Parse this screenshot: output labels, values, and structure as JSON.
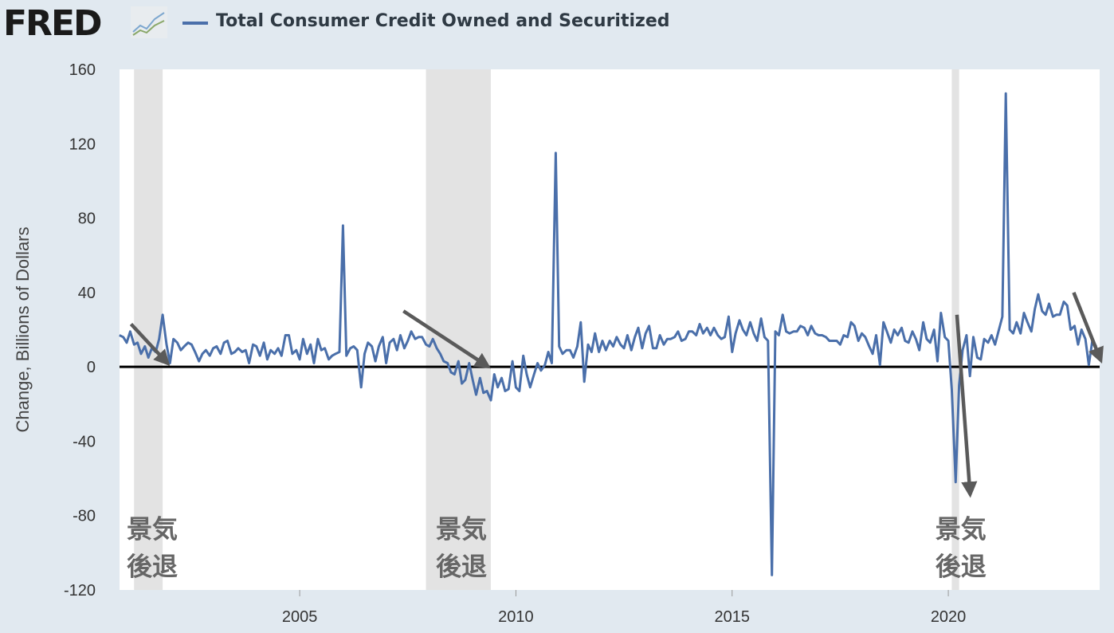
{
  "header": {
    "logo_text": "FRED",
    "logo_mark": "chart-line-icon",
    "legend_label": "Total Consumer Credit Owned and Securitized",
    "legend_color": "#4a6faa"
  },
  "chart_data": {
    "type": "line",
    "ylabel": "Change, Billions of Dollars",
    "ylim": [
      -120,
      160
    ],
    "yticks": [
      160,
      120,
      80,
      40,
      0,
      -40,
      -80,
      -120
    ],
    "xlim": [
      2000.8333,
      2023.5
    ],
    "xticks": [
      2005,
      2010,
      2015,
      2020
    ],
    "grid": false,
    "legend_position": "top-left",
    "colors": {
      "series": "#4a6faa",
      "recession": "#e3e3e3",
      "zero_line": "#000000",
      "annotation": "#666666"
    },
    "recessions": [
      [
        2001.17,
        2001.83
      ],
      [
        2007.92,
        2009.42
      ],
      [
        2020.08,
        2020.25
      ]
    ],
    "annotations": [
      {
        "line1": "景気",
        "line2": "後退",
        "year": 2001.0
      },
      {
        "line1": "景気",
        "line2": "後退",
        "year": 2008.15
      },
      {
        "line1": "景気",
        "line2": "後退",
        "year": 2019.7
      }
    ],
    "arrows": [
      {
        "from": [
          2001.1,
          23
        ],
        "to": [
          2001.9,
          3
        ]
      },
      {
        "from": [
          2007.4,
          30
        ],
        "to": [
          2009.3,
          1
        ]
      },
      {
        "from": [
          2020.2,
          28
        ],
        "to": [
          2020.5,
          -67
        ]
      },
      {
        "from": [
          2022.9,
          40
        ],
        "to": [
          2023.5,
          5
        ]
      }
    ],
    "series": [
      {
        "name": "Total Consumer Credit Owned and Securitized",
        "values": [
          [
            2000.83,
            17
          ],
          [
            2000.92,
            16
          ],
          [
            2001.0,
            13
          ],
          [
            2001.08,
            19
          ],
          [
            2001.17,
            12
          ],
          [
            2001.25,
            13
          ],
          [
            2001.33,
            7
          ],
          [
            2001.42,
            11
          ],
          [
            2001.5,
            5
          ],
          [
            2001.58,
            10
          ],
          [
            2001.67,
            8
          ],
          [
            2001.75,
            15
          ],
          [
            2001.83,
            28
          ],
          [
            2001.92,
            12
          ],
          [
            2002.0,
            2
          ],
          [
            2002.08,
            15
          ],
          [
            2002.17,
            13
          ],
          [
            2002.25,
            9
          ],
          [
            2002.33,
            11
          ],
          [
            2002.42,
            13
          ],
          [
            2002.5,
            12
          ],
          [
            2002.58,
            8
          ],
          [
            2002.67,
            3
          ],
          [
            2002.75,
            7
          ],
          [
            2002.83,
            9
          ],
          [
            2002.92,
            6
          ],
          [
            2003.0,
            10
          ],
          [
            2003.08,
            11
          ],
          [
            2003.17,
            7
          ],
          [
            2003.25,
            13
          ],
          [
            2003.33,
            14
          ],
          [
            2003.42,
            7
          ],
          [
            2003.5,
            8
          ],
          [
            2003.58,
            10
          ],
          [
            2003.67,
            8
          ],
          [
            2003.75,
            9
          ],
          [
            2003.83,
            2
          ],
          [
            2003.92,
            12
          ],
          [
            2004.0,
            11
          ],
          [
            2004.08,
            6
          ],
          [
            2004.17,
            13
          ],
          [
            2004.25,
            4
          ],
          [
            2004.33,
            9
          ],
          [
            2004.42,
            7
          ],
          [
            2004.5,
            10
          ],
          [
            2004.58,
            6
          ],
          [
            2004.67,
            17
          ],
          [
            2004.75,
            17
          ],
          [
            2004.83,
            7
          ],
          [
            2004.92,
            9
          ],
          [
            2005.0,
            4
          ],
          [
            2005.08,
            15
          ],
          [
            2005.17,
            7
          ],
          [
            2005.25,
            12
          ],
          [
            2005.33,
            2
          ],
          [
            2005.42,
            15
          ],
          [
            2005.5,
            9
          ],
          [
            2005.58,
            10
          ],
          [
            2005.67,
            4
          ],
          [
            2005.75,
            6
          ],
          [
            2005.83,
            7
          ],
          [
            2005.92,
            8
          ],
          [
            2006.0,
            76
          ],
          [
            2006.08,
            6
          ],
          [
            2006.17,
            10
          ],
          [
            2006.25,
            11
          ],
          [
            2006.33,
            9
          ],
          [
            2006.42,
            -11
          ],
          [
            2006.5,
            7
          ],
          [
            2006.58,
            13
          ],
          [
            2006.67,
            11
          ],
          [
            2006.75,
            3
          ],
          [
            2006.83,
            11
          ],
          [
            2006.92,
            16
          ],
          [
            2007.0,
            2
          ],
          [
            2007.08,
            13
          ],
          [
            2007.17,
            15
          ],
          [
            2007.25,
            9
          ],
          [
            2007.33,
            17
          ],
          [
            2007.42,
            10
          ],
          [
            2007.5,
            14
          ],
          [
            2007.58,
            19
          ],
          [
            2007.67,
            15
          ],
          [
            2007.75,
            16
          ],
          [
            2007.83,
            16
          ],
          [
            2007.92,
            12
          ],
          [
            2008.0,
            11
          ],
          [
            2008.08,
            15
          ],
          [
            2008.17,
            10
          ],
          [
            2008.25,
            7
          ],
          [
            2008.33,
            3
          ],
          [
            2008.42,
            2
          ],
          [
            2008.5,
            -3
          ],
          [
            2008.58,
            -4
          ],
          [
            2008.67,
            3
          ],
          [
            2008.75,
            -9
          ],
          [
            2008.83,
            -7
          ],
          [
            2008.92,
            2
          ],
          [
            2009.0,
            -7
          ],
          [
            2009.08,
            -15
          ],
          [
            2009.17,
            -6
          ],
          [
            2009.25,
            -14
          ],
          [
            2009.33,
            -13
          ],
          [
            2009.42,
            -18
          ],
          [
            2009.5,
            -4
          ],
          [
            2009.58,
            -11
          ],
          [
            2009.67,
            -6
          ],
          [
            2009.75,
            -13
          ],
          [
            2009.83,
            -12
          ],
          [
            2009.92,
            3
          ],
          [
            2010.0,
            -11
          ],
          [
            2010.08,
            -13
          ],
          [
            2010.17,
            6
          ],
          [
            2010.25,
            -4
          ],
          [
            2010.33,
            -11
          ],
          [
            2010.42,
            -4
          ],
          [
            2010.5,
            2
          ],
          [
            2010.58,
            -2
          ],
          [
            2010.67,
            1
          ],
          [
            2010.75,
            8
          ],
          [
            2010.83,
            2
          ],
          [
            2010.92,
            115
          ],
          [
            2011.0,
            11
          ],
          [
            2011.08,
            7
          ],
          [
            2011.17,
            9
          ],
          [
            2011.25,
            9
          ],
          [
            2011.33,
            5
          ],
          [
            2011.42,
            11
          ],
          [
            2011.5,
            24
          ],
          [
            2011.58,
            -8
          ],
          [
            2011.67,
            12
          ],
          [
            2011.75,
            8
          ],
          [
            2011.83,
            18
          ],
          [
            2011.92,
            8
          ],
          [
            2012.0,
            14
          ],
          [
            2012.08,
            9
          ],
          [
            2012.17,
            14
          ],
          [
            2012.25,
            11
          ],
          [
            2012.33,
            16
          ],
          [
            2012.42,
            12
          ],
          [
            2012.5,
            10
          ],
          [
            2012.58,
            17
          ],
          [
            2012.67,
            9
          ],
          [
            2012.75,
            16
          ],
          [
            2012.83,
            21
          ],
          [
            2012.92,
            10
          ],
          [
            2013.0,
            18
          ],
          [
            2013.08,
            22
          ],
          [
            2013.17,
            10
          ],
          [
            2013.25,
            10
          ],
          [
            2013.33,
            17
          ],
          [
            2013.42,
            12
          ],
          [
            2013.5,
            15
          ],
          [
            2013.58,
            15
          ],
          [
            2013.67,
            16
          ],
          [
            2013.75,
            19
          ],
          [
            2013.83,
            14
          ],
          [
            2013.92,
            15
          ],
          [
            2014.0,
            19
          ],
          [
            2014.08,
            19
          ],
          [
            2014.17,
            17
          ],
          [
            2014.25,
            23
          ],
          [
            2014.33,
            18
          ],
          [
            2014.42,
            21
          ],
          [
            2014.5,
            17
          ],
          [
            2014.58,
            21
          ],
          [
            2014.67,
            17
          ],
          [
            2014.75,
            15
          ],
          [
            2014.83,
            16
          ],
          [
            2014.92,
            27
          ],
          [
            2015.0,
            8
          ],
          [
            2015.08,
            18
          ],
          [
            2015.17,
            25
          ],
          [
            2015.25,
            20
          ],
          [
            2015.33,
            17
          ],
          [
            2015.42,
            24
          ],
          [
            2015.5,
            18
          ],
          [
            2015.58,
            14
          ],
          [
            2015.67,
            26
          ],
          [
            2015.75,
            16
          ],
          [
            2015.83,
            14
          ],
          [
            2015.92,
            -112
          ],
          [
            2016.0,
            19
          ],
          [
            2016.08,
            17
          ],
          [
            2016.17,
            28
          ],
          [
            2016.25,
            19
          ],
          [
            2016.33,
            18
          ],
          [
            2016.42,
            19
          ],
          [
            2016.5,
            19
          ],
          [
            2016.58,
            22
          ],
          [
            2016.67,
            21
          ],
          [
            2016.75,
            17
          ],
          [
            2016.83,
            22
          ],
          [
            2016.92,
            18
          ],
          [
            2017.0,
            17
          ],
          [
            2017.08,
            17
          ],
          [
            2017.17,
            16
          ],
          [
            2017.25,
            14
          ],
          [
            2017.33,
            14
          ],
          [
            2017.42,
            14
          ],
          [
            2017.5,
            12
          ],
          [
            2017.58,
            17
          ],
          [
            2017.67,
            16
          ],
          [
            2017.75,
            24
          ],
          [
            2017.83,
            22
          ],
          [
            2017.92,
            14
          ],
          [
            2018.0,
            18
          ],
          [
            2018.08,
            16
          ],
          [
            2018.17,
            11
          ],
          [
            2018.25,
            7
          ],
          [
            2018.33,
            17
          ],
          [
            2018.42,
            1
          ],
          [
            2018.5,
            24
          ],
          [
            2018.58,
            19
          ],
          [
            2018.67,
            13
          ],
          [
            2018.75,
            20
          ],
          [
            2018.83,
            17
          ],
          [
            2018.92,
            21
          ],
          [
            2019.0,
            14
          ],
          [
            2019.08,
            13
          ],
          [
            2019.17,
            19
          ],
          [
            2019.25,
            15
          ],
          [
            2019.33,
            9
          ],
          [
            2019.42,
            24
          ],
          [
            2019.5,
            15
          ],
          [
            2019.58,
            13
          ],
          [
            2019.67,
            20
          ],
          [
            2019.75,
            3
          ],
          [
            2019.83,
            29
          ],
          [
            2019.92,
            16
          ],
          [
            2020.0,
            14
          ],
          [
            2020.08,
            -12
          ],
          [
            2020.17,
            -62
          ],
          [
            2020.25,
            -10
          ],
          [
            2020.33,
            9
          ],
          [
            2020.42,
            17
          ],
          [
            2020.5,
            -5
          ],
          [
            2020.58,
            16
          ],
          [
            2020.67,
            5
          ],
          [
            2020.75,
            4
          ],
          [
            2020.83,
            15
          ],
          [
            2020.92,
            13
          ],
          [
            2021.0,
            17
          ],
          [
            2021.08,
            12
          ],
          [
            2021.17,
            20
          ],
          [
            2021.25,
            27
          ],
          [
            2021.33,
            147
          ],
          [
            2021.42,
            20
          ],
          [
            2021.5,
            18
          ],
          [
            2021.58,
            24
          ],
          [
            2021.67,
            18
          ],
          [
            2021.75,
            29
          ],
          [
            2021.83,
            24
          ],
          [
            2021.92,
            19
          ],
          [
            2022.0,
            31
          ],
          [
            2022.08,
            39
          ],
          [
            2022.17,
            30
          ],
          [
            2022.25,
            28
          ],
          [
            2022.33,
            34
          ],
          [
            2022.42,
            27
          ],
          [
            2022.5,
            28
          ],
          [
            2022.58,
            28
          ],
          [
            2022.67,
            35
          ],
          [
            2022.75,
            33
          ],
          [
            2022.83,
            20
          ],
          [
            2022.92,
            22
          ],
          [
            2023.0,
            12
          ],
          [
            2023.08,
            20
          ],
          [
            2023.17,
            15
          ],
          [
            2023.25,
            1
          ],
          [
            2023.33,
            14
          ],
          [
            2023.42,
            11
          ]
        ]
      }
    ]
  }
}
